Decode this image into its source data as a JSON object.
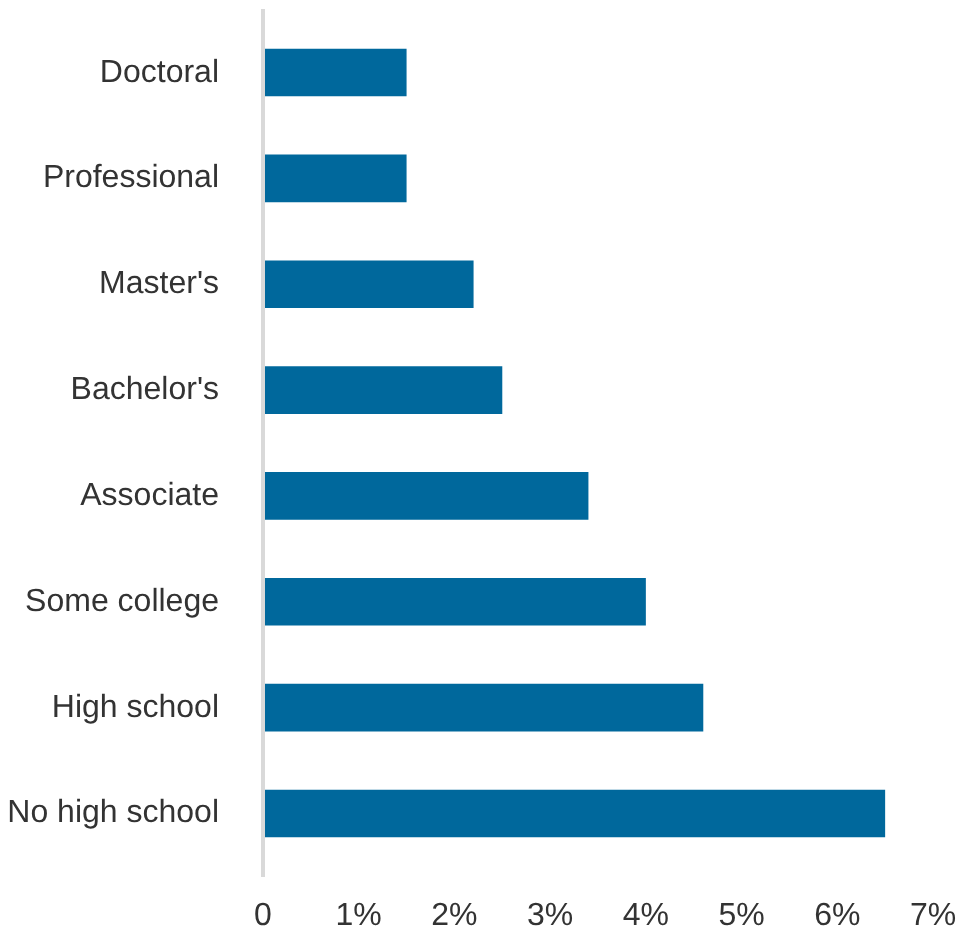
{
  "chart_data": {
    "type": "bar",
    "orientation": "horizontal",
    "categories": [
      "Doctoral",
      "Professional",
      "Master's",
      "Bachelor's",
      "Associate",
      "Some college",
      "High school",
      "No high school"
    ],
    "values": [
      1.5,
      1.5,
      2.2,
      2.5,
      3.4,
      4.0,
      4.6,
      6.5
    ],
    "color": "#00689c",
    "xlim": [
      0,
      7
    ],
    "xticks": [
      0,
      {
        "value": 1,
        "label": "1%"
      },
      {
        "value": 2,
        "label": "2%"
      },
      {
        "value": 3,
        "label": "3%"
      },
      {
        "value": 4,
        "label": "4%"
      },
      {
        "value": 5,
        "label": "5%"
      },
      {
        "value": 6,
        "label": "6%"
      },
      {
        "value": 7,
        "label": "7%"
      }
    ],
    "grid": false
  }
}
